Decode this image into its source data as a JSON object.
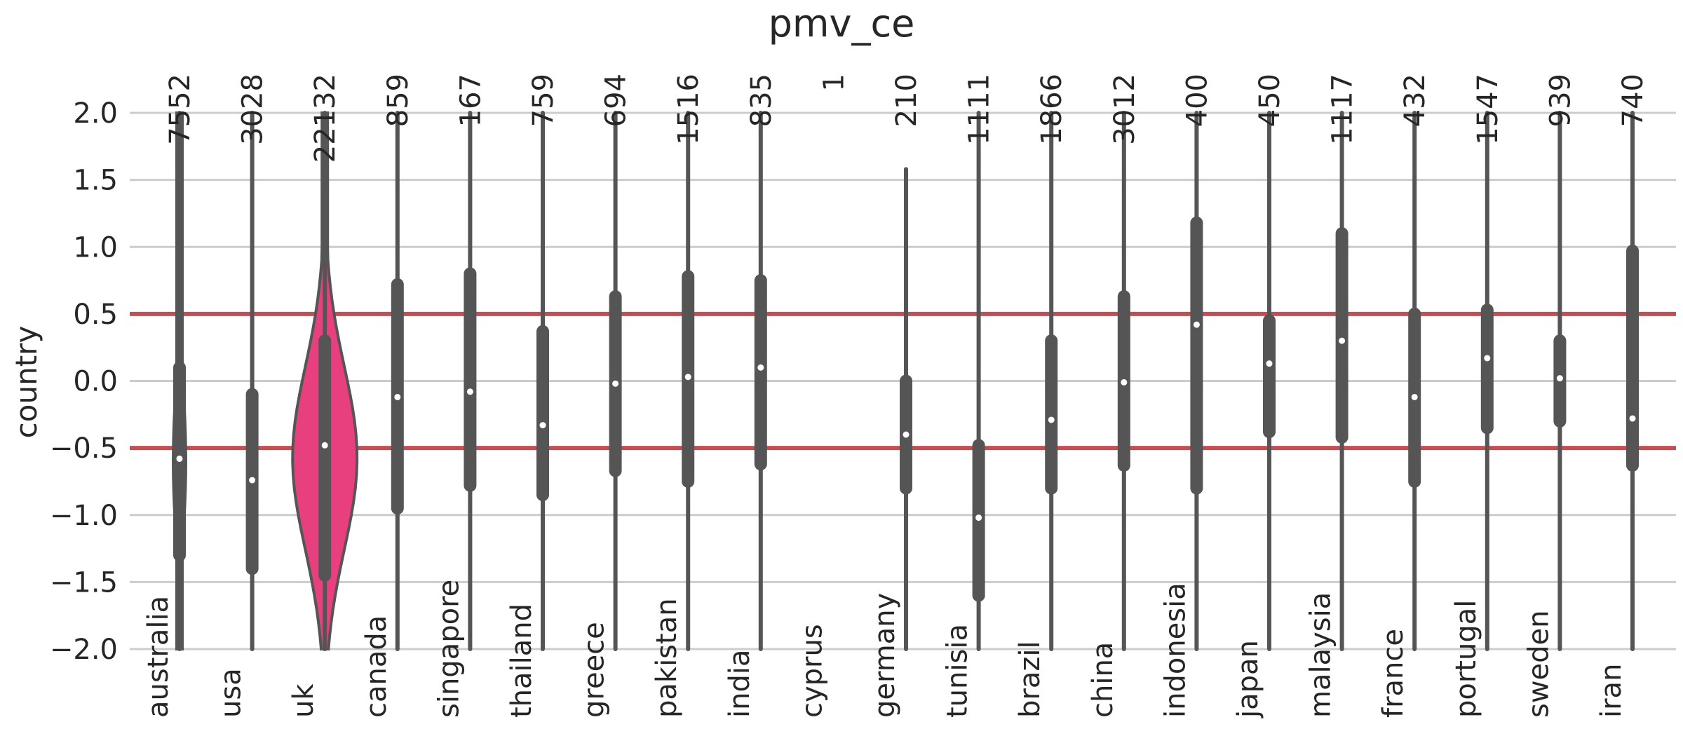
{
  "chart_data": {
    "type": "violin",
    "title": "pmv_ce",
    "ylabel": "country",
    "ylim": [
      -2.0,
      2.0
    ],
    "yticks": [
      "2.0",
      "1.5",
      "1.0",
      "0.5",
      "0.0",
      "−0.5",
      "−1.0",
      "−1.5",
      "−2.0"
    ],
    "ytick_values": [
      2.0,
      1.5,
      1.0,
      0.5,
      0.0,
      -0.5,
      -1.0,
      -1.5,
      -2.0
    ],
    "reference_lines": [
      0.5,
      -0.5
    ],
    "highlight_color": "#e8407f",
    "reference_color": "#c44e52",
    "line_color": "#555555",
    "categories": [
      {
        "name": "australia",
        "count": "7552",
        "median": -0.58,
        "q1": -1.3,
        "q3": 0.1,
        "min": -2.0,
        "max": 2.0,
        "highlight": true
      },
      {
        "name": "usa",
        "count": "3028",
        "median": -0.74,
        "q1": -1.4,
        "q3": -0.1,
        "min": -2.0,
        "max": 2.0,
        "highlight": false
      },
      {
        "name": "uk",
        "count": "22132",
        "median": -0.48,
        "q1": -1.45,
        "q3": 0.3,
        "min": -2.0,
        "max": 2.0,
        "highlight": true
      },
      {
        "name": "canada",
        "count": "859",
        "median": -0.12,
        "q1": -0.95,
        "q3": 0.72,
        "min": -2.0,
        "max": 2.0,
        "highlight": false
      },
      {
        "name": "singapore",
        "count": "167",
        "median": -0.08,
        "q1": -0.78,
        "q3": 0.8,
        "min": -2.0,
        "max": 2.0,
        "highlight": false
      },
      {
        "name": "thailand",
        "count": "759",
        "median": -0.33,
        "q1": -0.85,
        "q3": 0.37,
        "min": -2.0,
        "max": 2.0,
        "highlight": false
      },
      {
        "name": "greece",
        "count": "694",
        "median": -0.02,
        "q1": -0.67,
        "q3": 0.63,
        "min": -2.0,
        "max": 2.0,
        "highlight": false
      },
      {
        "name": "pakistan",
        "count": "1516",
        "median": 0.03,
        "q1": -0.75,
        "q3": 0.78,
        "min": -2.0,
        "max": 2.0,
        "highlight": false
      },
      {
        "name": "india",
        "count": "835",
        "median": 0.1,
        "q1": -0.62,
        "q3": 0.75,
        "min": -2.0,
        "max": 2.0,
        "highlight": false
      },
      {
        "name": "cyprus",
        "count": "1",
        "median": null,
        "q1": null,
        "q3": null,
        "min": null,
        "max": null,
        "highlight": false
      },
      {
        "name": "germany",
        "count": "210",
        "median": -0.4,
        "q1": -0.8,
        "q3": 0.0,
        "min": -2.0,
        "max": 1.58,
        "highlight": false
      },
      {
        "name": "tunisia",
        "count": "1111",
        "median": -1.02,
        "q1": -1.6,
        "q3": -0.48,
        "min": -2.0,
        "max": 2.0,
        "highlight": false
      },
      {
        "name": "brazil",
        "count": "1866",
        "median": -0.29,
        "q1": -0.8,
        "q3": 0.3,
        "min": -2.0,
        "max": 2.0,
        "highlight": false
      },
      {
        "name": "china",
        "count": "3012",
        "median": -0.01,
        "q1": -0.63,
        "q3": 0.63,
        "min": -2.0,
        "max": 2.0,
        "highlight": false
      },
      {
        "name": "indonesia",
        "count": "400",
        "median": 0.42,
        "q1": -0.8,
        "q3": 1.18,
        "min": -2.0,
        "max": 2.0,
        "highlight": false
      },
      {
        "name": "japan",
        "count": "450",
        "median": 0.13,
        "q1": -0.38,
        "q3": 0.45,
        "min": -2.0,
        "max": 2.0,
        "highlight": false
      },
      {
        "name": "malaysia",
        "count": "1117",
        "median": 0.3,
        "q1": -0.42,
        "q3": 1.1,
        "min": -2.0,
        "max": 2.0,
        "highlight": false
      },
      {
        "name": "france",
        "count": "432",
        "median": -0.12,
        "q1": -0.75,
        "q3": 0.5,
        "min": -2.0,
        "max": 2.0,
        "highlight": false
      },
      {
        "name": "portugal",
        "count": "1547",
        "median": 0.17,
        "q1": -0.35,
        "q3": 0.53,
        "min": -2.0,
        "max": 2.0,
        "highlight": false
      },
      {
        "name": "sweden",
        "count": "939",
        "median": 0.02,
        "q1": -0.3,
        "q3": 0.3,
        "min": -2.0,
        "max": 2.0,
        "highlight": false
      },
      {
        "name": "iran",
        "count": "740",
        "median": -0.28,
        "q1": -0.63,
        "q3": 0.97,
        "min": -2.0,
        "max": 2.0,
        "highlight": false
      }
    ]
  }
}
